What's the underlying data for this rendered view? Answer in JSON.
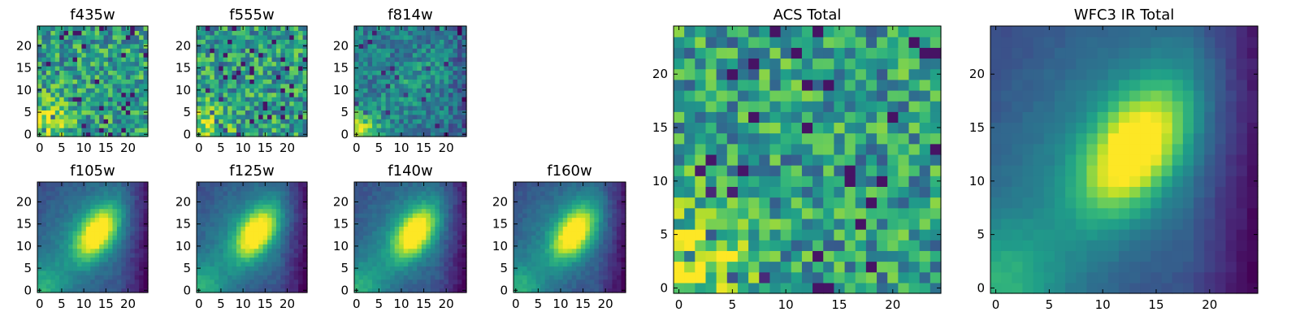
{
  "chart_data": [
    {
      "type": "heatmap",
      "title": "f435w",
      "pattern": "noise",
      "seed": 11,
      "xticks": [
        0,
        5,
        10,
        15,
        20
      ],
      "yticks": [
        0,
        5,
        10,
        15,
        20
      ],
      "xlim": [
        0,
        24
      ],
      "ylim": [
        0,
        24
      ],
      "colormap": "viridis"
    },
    {
      "type": "heatmap",
      "title": "f555w",
      "pattern": "noise",
      "seed": 23,
      "xticks": [
        0,
        5,
        10,
        15,
        20
      ],
      "yticks": [
        0,
        5,
        10,
        15,
        20
      ],
      "xlim": [
        0,
        24
      ],
      "ylim": [
        0,
        24
      ],
      "colormap": "viridis"
    },
    {
      "type": "heatmap",
      "title": "f814w",
      "pattern": "faint",
      "seed": 37,
      "xticks": [
        0,
        5,
        10,
        15,
        20
      ],
      "yticks": [
        0,
        5,
        10,
        15,
        20
      ],
      "xlim": [
        0,
        24
      ],
      "ylim": [
        0,
        24
      ],
      "colormap": "viridis"
    },
    {
      "type": "heatmap",
      "title": "f105w",
      "pattern": "galaxy",
      "seed": 41,
      "xticks": [
        0,
        5,
        10,
        15,
        20
      ],
      "yticks": [
        0,
        5,
        10,
        15,
        20
      ],
      "xlim": [
        0,
        24
      ],
      "ylim": [
        0,
        24
      ],
      "colormap": "viridis"
    },
    {
      "type": "heatmap",
      "title": "f125w",
      "pattern": "galaxy",
      "seed": 53,
      "xticks": [
        0,
        5,
        10,
        15,
        20
      ],
      "yticks": [
        0,
        5,
        10,
        15,
        20
      ],
      "xlim": [
        0,
        24
      ],
      "ylim": [
        0,
        24
      ],
      "colormap": "viridis"
    },
    {
      "type": "heatmap",
      "title": "f140w",
      "pattern": "galaxy",
      "seed": 67,
      "xticks": [
        0,
        5,
        10,
        15,
        20
      ],
      "yticks": [
        0,
        5,
        10,
        15,
        20
      ],
      "xlim": [
        0,
        24
      ],
      "ylim": [
        0,
        24
      ],
      "colormap": "viridis"
    },
    {
      "type": "heatmap",
      "title": "f160w",
      "pattern": "galaxy",
      "seed": 79,
      "xticks": [
        0,
        5,
        10,
        15,
        20
      ],
      "yticks": [
        0,
        5,
        10,
        15,
        20
      ],
      "xlim": [
        0,
        24
      ],
      "ylim": [
        0,
        24
      ],
      "colormap": "viridis"
    },
    {
      "type": "heatmap",
      "title": "ACS Total",
      "pattern": "noise",
      "seed": 97,
      "xticks": [
        0,
        5,
        10,
        15,
        20
      ],
      "yticks": [
        0,
        5,
        10,
        15,
        20
      ],
      "xlim": [
        0,
        24
      ],
      "ylim": [
        0,
        24
      ],
      "colormap": "viridis"
    },
    {
      "type": "heatmap",
      "title": "WFC3 IR Total",
      "pattern": "galaxy_smooth",
      "seed": 101,
      "xticks": [
        0,
        5,
        10,
        15,
        20
      ],
      "yticks": [
        0,
        5,
        10,
        15,
        20
      ],
      "xlim": [
        0,
        24
      ],
      "ylim": [
        0,
        24
      ],
      "colormap": "viridis"
    }
  ]
}
